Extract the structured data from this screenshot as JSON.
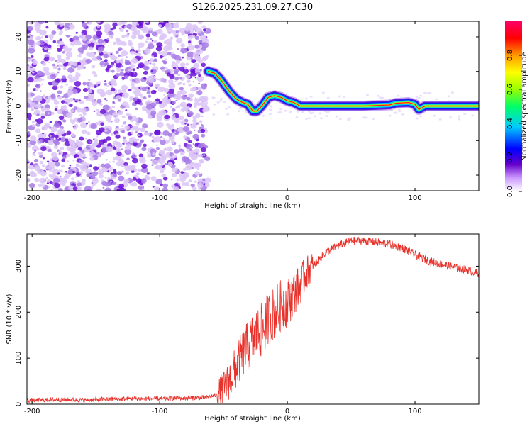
{
  "chart_data": [
    {
      "type": "heatmap",
      "title": "S126.2025.231.09.27.C30",
      "xlabel": "Height of straight line (km)",
      "ylabel": "Frequency (Hz)",
      "xlim": [
        -204,
        150
      ],
      "ylim": [
        -24.5,
        24.5
      ],
      "x_ticks": [
        -200,
        -100,
        0,
        100
      ],
      "y_ticks": [
        -20,
        -10,
        0,
        10,
        20
      ],
      "noise_region_x": [
        -204,
        -62
      ],
      "ridge": {
        "name": "signal ridge",
        "x": [
          -62,
          -57,
          -53,
          -49,
          -45,
          -40,
          -35,
          -31,
          -27,
          -24,
          -20,
          -15,
          -10,
          -5,
          0,
          5,
          10,
          20,
          40,
          60,
          80,
          85,
          95,
          100,
          103,
          108,
          115,
          130,
          150
        ],
        "y": [
          10,
          9.5,
          8,
          6,
          4,
          2,
          1,
          0.5,
          -1.5,
          -1.5,
          0,
          2.5,
          3,
          2.5,
          1.5,
          1,
          0,
          0,
          0,
          0,
          0.3,
          0.8,
          1,
          0.5,
          -1,
          0,
          0,
          0,
          0
        ]
      },
      "colorbar": {
        "label": "Normalized spectral amplitude",
        "range": [
          0.0,
          1.0
        ],
        "ticks": [
          0.0,
          0.2,
          0.4,
          0.6,
          0.8
        ],
        "colors": [
          "#ffffff",
          "#cc99ff",
          "#6600cc",
          "#0000ff",
          "#00ccff",
          "#00ff66",
          "#99ff00",
          "#ffff00",
          "#ff9900",
          "#ff0000",
          "#ff0066"
        ]
      }
    },
    {
      "type": "line",
      "title": "",
      "xlabel": "Height of straight line (km)",
      "ylabel": "SNR (10 * v/v)",
      "xlim": [
        -204,
        150
      ],
      "ylim": [
        0,
        370
      ],
      "x_ticks": [
        -200,
        -100,
        0,
        100
      ],
      "y_ticks": [
        0,
        100,
        200,
        300
      ],
      "series": [
        {
          "name": "SNR",
          "color": "#e8312a",
          "x": [
            -204,
            -180,
            -160,
            -140,
            -120,
            -100,
            -80,
            -65,
            -55,
            -48,
            -40,
            -35,
            -30,
            -25,
            -20,
            -15,
            -10,
            -5,
            0,
            5,
            10,
            15,
            20,
            25,
            30,
            40,
            50,
            60,
            70,
            80,
            90,
            100,
            110,
            120,
            130,
            140,
            150
          ],
          "values": [
            8,
            10,
            9,
            11,
            12,
            12,
            13,
            14,
            20,
            40,
            80,
            110,
            130,
            150,
            160,
            185,
            200,
            215,
            220,
            240,
            260,
            285,
            300,
            315,
            330,
            345,
            355,
            355,
            352,
            348,
            340,
            325,
            312,
            305,
            298,
            292,
            285
          ]
        }
      ]
    }
  ]
}
